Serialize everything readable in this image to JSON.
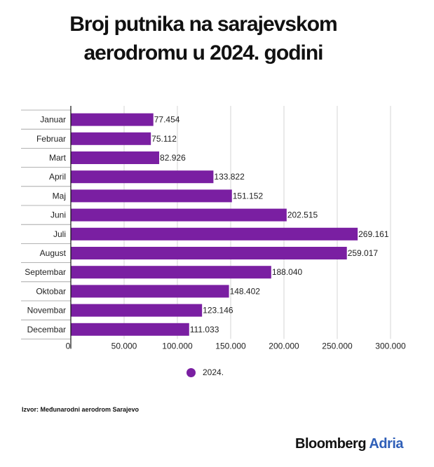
{
  "title": {
    "line1": "Broj putnika na sarajevskom",
    "line2": "aerodromu u 2024. godini"
  },
  "chart_data": {
    "type": "bar",
    "orientation": "horizontal",
    "categories": [
      "Januar",
      "Februar",
      "Mart",
      "April",
      "Maj",
      "Juni",
      "Juli",
      "August",
      "Septembar",
      "Oktobar",
      "Novembar",
      "Decembar"
    ],
    "series": [
      {
        "name": "2024.",
        "color": "#7a1fa2",
        "values": [
          77454,
          75112,
          82926,
          133822,
          151152,
          202515,
          269161,
          259017,
          188040,
          148402,
          123146,
          111033
        ],
        "labels": [
          "77.454",
          "75.112",
          "82.926",
          "133.822",
          "151.152",
          "202.515",
          "269.161",
          "259.017",
          "188.040",
          "148.402",
          "123.146",
          "111.033"
        ]
      }
    ],
    "xlim": [
      0,
      300000
    ],
    "xticks": [
      0,
      50000,
      100000,
      150000,
      200000,
      250000,
      300000
    ],
    "xtick_labels": [
      "0",
      "50.000",
      "100.000",
      "150.000",
      "200.000",
      "250.000",
      "300.000"
    ],
    "grid": true,
    "legend_position": "bottom"
  },
  "legend": {
    "label": "2024."
  },
  "source": "Izvor: Međunarodni aerodrom Sarajevo",
  "brand": {
    "part1": "Bloomberg",
    "part2": "Adria"
  }
}
